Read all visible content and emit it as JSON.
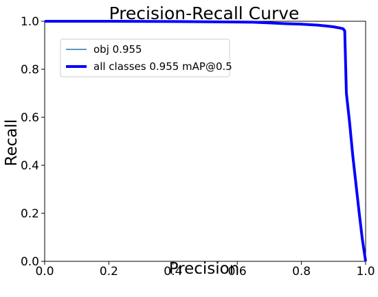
{
  "chart_data": {
    "type": "line",
    "title": "Precision-Recall Curve",
    "xlabel": "Precision",
    "ylabel": "Recall",
    "xlim": [
      0.0,
      1.0
    ],
    "ylim": [
      0.0,
      1.0
    ],
    "xticks": [
      "0.0",
      "0.2",
      "0.4",
      "0.6",
      "0.8",
      "1.0"
    ],
    "yticks": [
      "0.0",
      "0.2",
      "0.4",
      "0.6",
      "0.8",
      "1.0"
    ],
    "xtick_values": [
      0.0,
      0.2,
      0.4,
      0.6,
      0.8,
      1.0
    ],
    "ytick_values": [
      0.0,
      0.2,
      0.4,
      0.6,
      0.8,
      1.0
    ],
    "grid": false,
    "legend_position": "upper-left",
    "series": [
      {
        "name": "obj 0.955",
        "color": "#1f77b4",
        "line_weight": "thin",
        "x": [
          0.0,
          0.2,
          0.4,
          0.6,
          0.65,
          0.7,
          0.75,
          0.8,
          0.85,
          0.88,
          0.9,
          0.92,
          0.93,
          0.935,
          0.94,
          0.95,
          0.96,
          0.97,
          0.98,
          0.99,
          1.0
        ],
        "y": [
          1.0,
          1.0,
          0.999,
          0.997,
          0.996,
          0.993,
          0.99,
          0.988,
          0.984,
          0.98,
          0.977,
          0.972,
          0.969,
          0.96,
          0.7,
          0.58,
          0.44,
          0.32,
          0.2,
          0.09,
          0.0
        ]
      },
      {
        "name": "all classes 0.955 mAP@0.5",
        "color": "#0000ff",
        "line_weight": "thick",
        "x": [
          0.0,
          0.2,
          0.4,
          0.6,
          0.65,
          0.7,
          0.75,
          0.8,
          0.85,
          0.88,
          0.9,
          0.92,
          0.93,
          0.935,
          0.94,
          0.95,
          0.96,
          0.97,
          0.98,
          0.99,
          1.0
        ],
        "y": [
          1.0,
          1.0,
          0.999,
          0.997,
          0.996,
          0.993,
          0.99,
          0.988,
          0.984,
          0.98,
          0.977,
          0.972,
          0.969,
          0.96,
          0.7,
          0.58,
          0.44,
          0.32,
          0.2,
          0.09,
          0.0
        ]
      }
    ]
  }
}
